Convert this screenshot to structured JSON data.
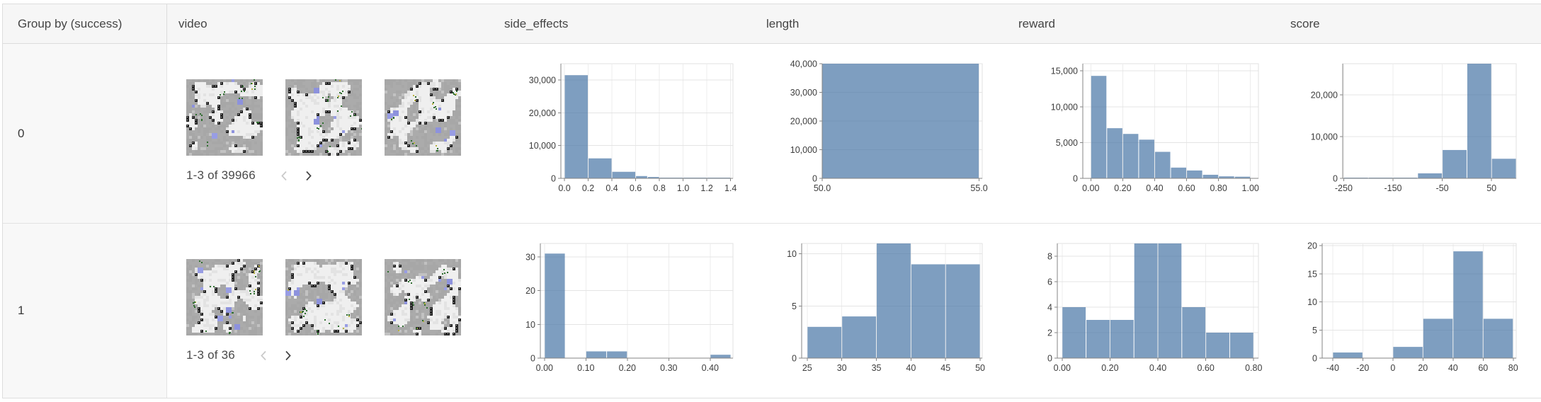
{
  "theme": {
    "bar_color": "rgba(76,120,168,0.72)",
    "grid_color": "#e4e4e4",
    "vgrid_color": "#ededed",
    "plot_border_color": "#e2e2e2",
    "axis_color": "#868686",
    "tick_label_color": "#3d3d3d",
    "header_bg": "#f6f6f6",
    "group_cell_bg": "#f8f8f8",
    "border_color": "#dedede"
  },
  "table": {
    "columns": [
      {
        "id": "group",
        "label": "Group by (success)"
      },
      {
        "id": "video",
        "label": "video"
      },
      {
        "id": "side_effects",
        "label": "side_effects"
      },
      {
        "id": "length",
        "label": "length"
      },
      {
        "id": "reward",
        "label": "reward"
      },
      {
        "id": "score",
        "label": "score"
      }
    ],
    "rows": [
      {
        "group_value": "0",
        "video": {
          "pagination": "1-3 of 39966",
          "prev_icon": "chevron-left",
          "next_icon": "chevron-right",
          "thumbnails": [
            {
              "seed": 11
            },
            {
              "seed": 23
            },
            {
              "seed": 87
            }
          ]
        }
      },
      {
        "group_value": "1",
        "video": {
          "pagination": "1-3 of 36",
          "prev_icon": "chevron-left",
          "next_icon": "chevron-right",
          "thumbnails": [
            {
              "seed": 53
            },
            {
              "seed": 67
            },
            {
              "seed": 79
            }
          ]
        }
      }
    ]
  },
  "chart_data": [
    {
      "type": "bar",
      "row_group": "0",
      "column": "side_effects",
      "bins": [
        {
          "x0": 0.0,
          "x1": 0.2,
          "count": 31500
        },
        {
          "x0": 0.2,
          "x1": 0.4,
          "count": 6100
        },
        {
          "x0": 0.4,
          "x1": 0.6,
          "count": 2000
        },
        {
          "x0": 0.6,
          "x1": 0.7,
          "count": 700
        },
        {
          "x0": 0.7,
          "x1": 0.8,
          "count": 420
        },
        {
          "x0": 0.8,
          "x1": 1.0,
          "count": 150
        },
        {
          "x0": 1.0,
          "x1": 1.2,
          "count": 60
        },
        {
          "x0": 1.2,
          "x1": 1.4,
          "count": 40
        }
      ],
      "xticks": {
        "values": [
          0.0,
          0.2,
          0.4,
          0.6,
          0.8,
          1.0,
          1.2,
          1.4
        ],
        "labels": [
          "0.0",
          "0.2",
          "0.4",
          "0.6",
          "0.8",
          "1.0",
          "1.2",
          "1.4"
        ]
      },
      "yticks": {
        "values": [
          0,
          10000,
          20000,
          30000
        ],
        "labels": [
          "0",
          "10,000",
          "20,000",
          "30,000"
        ]
      },
      "xlim": [
        -0.03,
        1.42
      ],
      "ylim": [
        0,
        35000
      ],
      "grid": true,
      "legend": "none"
    },
    {
      "type": "bar",
      "row_group": "0",
      "column": "length",
      "bins": [
        {
          "x0": 50.0,
          "x1": 55.0,
          "count": 40000
        }
      ],
      "xticks": {
        "values": [
          50.0,
          55.0
        ],
        "labels": [
          "50.0",
          "55.0"
        ]
      },
      "yticks": {
        "values": [
          0,
          10000,
          20000,
          30000,
          40000
        ],
        "labels": [
          "0",
          "10,000",
          "20,000",
          "30,000",
          "40,000"
        ]
      },
      "xlim": [
        50.0,
        55.1
      ],
      "ylim": [
        0,
        40000
      ],
      "grid": true,
      "legend": "none"
    },
    {
      "type": "bar",
      "row_group": "0",
      "column": "reward",
      "bins": [
        {
          "x0": 0.0,
          "x1": 0.1,
          "count": 14300
        },
        {
          "x0": 0.1,
          "x1": 0.2,
          "count": 7000
        },
        {
          "x0": 0.2,
          "x1": 0.3,
          "count": 6200
        },
        {
          "x0": 0.3,
          "x1": 0.4,
          "count": 5400
        },
        {
          "x0": 0.4,
          "x1": 0.5,
          "count": 3700
        },
        {
          "x0": 0.5,
          "x1": 0.6,
          "count": 1500
        },
        {
          "x0": 0.6,
          "x1": 0.7,
          "count": 1100
        },
        {
          "x0": 0.7,
          "x1": 0.8,
          "count": 500
        },
        {
          "x0": 0.8,
          "x1": 0.9,
          "count": 280
        },
        {
          "x0": 0.9,
          "x1": 1.0,
          "count": 230
        }
      ],
      "xticks": {
        "values": [
          0.0,
          0.2,
          0.4,
          0.6,
          0.8,
          1.0
        ],
        "labels": [
          "0.00",
          "0.20",
          "0.40",
          "0.60",
          "0.80",
          "1.00"
        ]
      },
      "yticks": {
        "values": [
          0,
          5000,
          10000,
          15000
        ],
        "labels": [
          "0",
          "5,000",
          "10,000",
          "15,000"
        ]
      },
      "xlim": [
        -0.05,
        1.05
      ],
      "ylim": [
        0,
        16000
      ],
      "grid": true,
      "legend": "none"
    },
    {
      "type": "bar",
      "row_group": "0",
      "column": "score",
      "bins": [
        {
          "x0": -250,
          "x1": -200,
          "count": 60
        },
        {
          "x0": -200,
          "x1": -150,
          "count": 90
        },
        {
          "x0": -150,
          "x1": -100,
          "count": 160
        },
        {
          "x0": -100,
          "x1": -50,
          "count": 1200
        },
        {
          "x0": -50,
          "x1": 0,
          "count": 6800
        },
        {
          "x0": 0,
          "x1": 50,
          "count": 27500
        },
        {
          "x0": 50,
          "x1": 100,
          "count": 4700
        }
      ],
      "xticks": {
        "values": [
          -250,
          -150,
          -50,
          50
        ],
        "labels": [
          "-250",
          "-150",
          "-50",
          "50"
        ]
      },
      "yticks": {
        "values": [
          0,
          10000,
          20000
        ],
        "labels": [
          "0",
          "10,000",
          "20,000"
        ]
      },
      "xlim": [
        -252,
        100
      ],
      "ylim": [
        0,
        27500
      ],
      "grid": true,
      "legend": "none"
    },
    {
      "type": "bar",
      "row_group": "1",
      "column": "side_effects",
      "bins": [
        {
          "x0": 0.0,
          "x1": 0.05,
          "count": 31
        },
        {
          "x0": 0.1,
          "x1": 0.15,
          "count": 2
        },
        {
          "x0": 0.15,
          "x1": 0.2,
          "count": 2
        },
        {
          "x0": 0.4,
          "x1": 0.45,
          "count": 1
        }
      ],
      "xticks": {
        "values": [
          0.0,
          0.1,
          0.2,
          0.3,
          0.4
        ],
        "labels": [
          "0.00",
          "0.10",
          "0.20",
          "0.30",
          "0.40"
        ]
      },
      "yticks": {
        "values": [
          0,
          10,
          20,
          30
        ],
        "labels": [
          "0",
          "10",
          "20",
          "30"
        ]
      },
      "xlim": [
        -0.01,
        0.455
      ],
      "ylim": [
        0,
        34
      ],
      "grid": true,
      "legend": "none"
    },
    {
      "type": "bar",
      "row_group": "1",
      "column": "length",
      "bins": [
        {
          "x0": 25,
          "x1": 30,
          "count": 3
        },
        {
          "x0": 30,
          "x1": 35,
          "count": 4
        },
        {
          "x0": 35,
          "x1": 40,
          "count": 11
        },
        {
          "x0": 40,
          "x1": 45,
          "count": 9
        },
        {
          "x0": 45,
          "x1": 50,
          "count": 9
        }
      ],
      "xticks": {
        "values": [
          25,
          30,
          35,
          40,
          45,
          50
        ],
        "labels": [
          "25",
          "30",
          "35",
          "40",
          "45",
          "50"
        ]
      },
      "yticks": {
        "values": [
          0,
          5,
          10
        ],
        "labels": [
          "0",
          "5",
          "10"
        ]
      },
      "xlim": [
        24.2,
        50.3
      ],
      "ylim": [
        0,
        11
      ],
      "grid": true,
      "legend": "none"
    },
    {
      "type": "bar",
      "row_group": "1",
      "column": "reward",
      "bins": [
        {
          "x0": 0.0,
          "x1": 0.1,
          "count": 4
        },
        {
          "x0": 0.1,
          "x1": 0.2,
          "count": 3
        },
        {
          "x0": 0.2,
          "x1": 0.3,
          "count": 3
        },
        {
          "x0": 0.3,
          "x1": 0.4,
          "count": 9
        },
        {
          "x0": 0.4,
          "x1": 0.5,
          "count": 9
        },
        {
          "x0": 0.5,
          "x1": 0.6,
          "count": 4
        },
        {
          "x0": 0.6,
          "x1": 0.7,
          "count": 2
        },
        {
          "x0": 0.7,
          "x1": 0.8,
          "count": 2
        }
      ],
      "xticks": {
        "values": [
          0.0,
          0.2,
          0.4,
          0.6,
          0.8
        ],
        "labels": [
          "0.00",
          "0.20",
          "0.40",
          "0.60",
          "0.80"
        ]
      },
      "yticks": {
        "values": [
          0,
          2,
          4,
          6,
          8
        ],
        "labels": [
          "0",
          "2",
          "4",
          "6",
          "8"
        ]
      },
      "xlim": [
        -0.02,
        0.82
      ],
      "ylim": [
        0,
        9
      ],
      "grid": true,
      "legend": "none"
    },
    {
      "type": "bar",
      "row_group": "1",
      "column": "score",
      "bins": [
        {
          "x0": -40,
          "x1": -20,
          "count": 1
        },
        {
          "x0": 0,
          "x1": 20,
          "count": 2
        },
        {
          "x0": 20,
          "x1": 40,
          "count": 7
        },
        {
          "x0": 40,
          "x1": 60,
          "count": 19
        },
        {
          "x0": 60,
          "x1": 80,
          "count": 7
        }
      ],
      "xticks": {
        "values": [
          -40,
          -20,
          0,
          20,
          40,
          60,
          80
        ],
        "labels": [
          "-40",
          "-20",
          "0",
          "20",
          "40",
          "60",
          "80"
        ]
      },
      "yticks": {
        "values": [
          0,
          5,
          10,
          15,
          20
        ],
        "labels": [
          "0",
          "5",
          "10",
          "15",
          "20"
        ]
      },
      "xlim": [
        -47,
        82
      ],
      "ylim": [
        0,
        20.4
      ],
      "grid": true,
      "legend": "none"
    }
  ]
}
